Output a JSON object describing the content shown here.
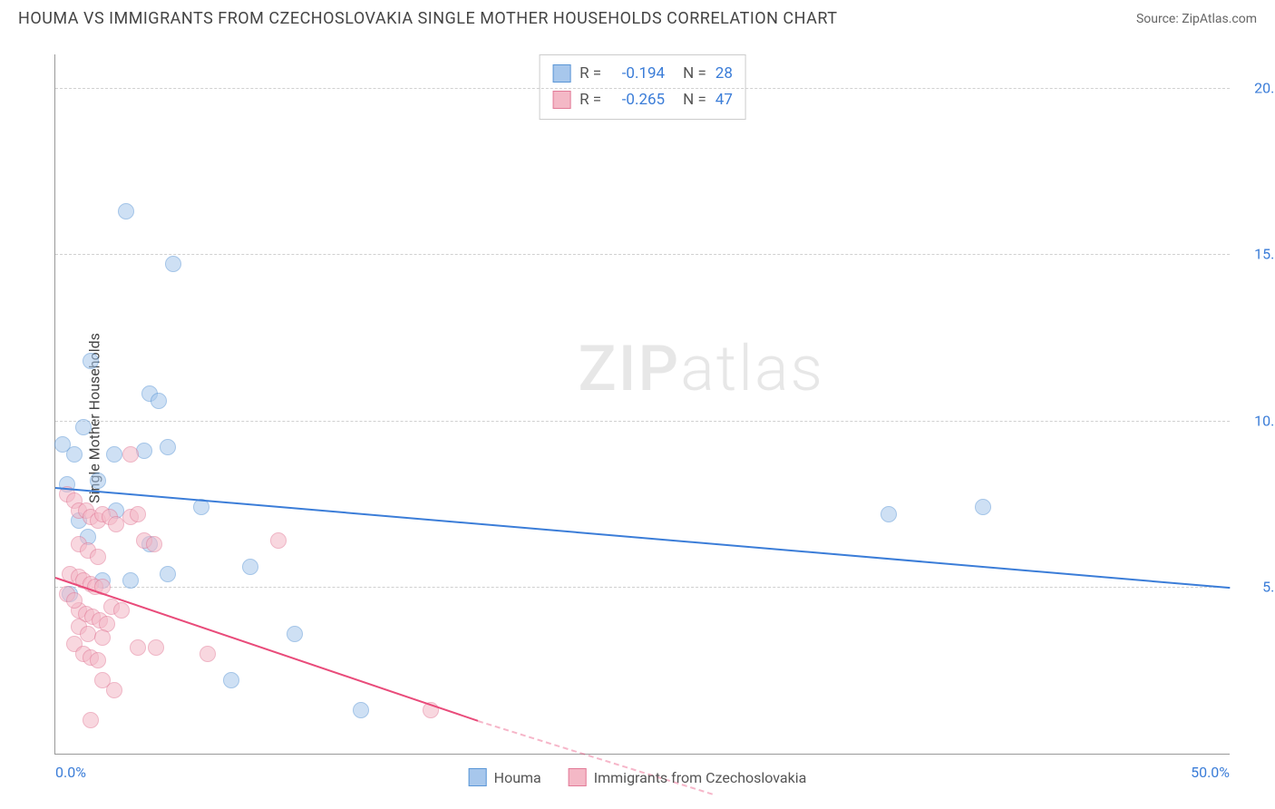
{
  "title": "HOUMA VS IMMIGRANTS FROM CZECHOSLOVAKIA SINGLE MOTHER HOUSEHOLDS CORRELATION CHART",
  "source": "Source: ZipAtlas.com",
  "ylabel": "Single Mother Households",
  "watermark_bold": "ZIP",
  "watermark_light": "atlas",
  "chart": {
    "type": "scatter",
    "background_color": "#ffffff",
    "grid_color": "#d0d0d0",
    "axis_color": "#999999",
    "text_color": "#444444",
    "tick_color": "#3b7dd8",
    "xlim": [
      0,
      50
    ],
    "ylim": [
      0,
      21
    ],
    "xticks": [
      {
        "v": 0,
        "label": "0.0%"
      },
      {
        "v": 50,
        "label": "50.0%"
      }
    ],
    "yticks": [
      {
        "v": 5,
        "label": "5.0%"
      },
      {
        "v": 10,
        "label": "10.0%"
      },
      {
        "v": 15,
        "label": "15.0%"
      },
      {
        "v": 20,
        "label": "20.0%"
      }
    ],
    "marker_radius": 9,
    "marker_opacity": 0.55,
    "series": [
      {
        "name": "Houma",
        "color_fill": "#a7c7ec",
        "color_stroke": "#5a96d6",
        "trend_color": "#3b7dd8",
        "R": "-0.194",
        "N": "28",
        "trend": {
          "x1": 0,
          "y1": 8.0,
          "x2": 50,
          "y2": 5.0
        },
        "points": [
          [
            0.5,
            8.1
          ],
          [
            0.3,
            9.3
          ],
          [
            1.2,
            9.8
          ],
          [
            0.8,
            9.0
          ],
          [
            3.0,
            16.3
          ],
          [
            5.0,
            14.7
          ],
          [
            1.5,
            11.8
          ],
          [
            4.0,
            10.8
          ],
          [
            4.4,
            10.6
          ],
          [
            2.5,
            9.0
          ],
          [
            3.8,
            9.1
          ],
          [
            4.8,
            9.2
          ],
          [
            2.6,
            7.3
          ],
          [
            6.2,
            7.4
          ],
          [
            4.0,
            6.3
          ],
          [
            4.8,
            5.4
          ],
          [
            8.3,
            5.6
          ],
          [
            10.2,
            3.6
          ],
          [
            7.5,
            2.2
          ],
          [
            13.0,
            1.3
          ],
          [
            35.5,
            7.2
          ],
          [
            39.5,
            7.4
          ],
          [
            1.0,
            7.0
          ],
          [
            1.4,
            6.5
          ],
          [
            2.0,
            5.2
          ],
          [
            1.8,
            8.2
          ],
          [
            0.6,
            4.8
          ],
          [
            3.2,
            5.2
          ]
        ]
      },
      {
        "name": "Immigrants from Czechoslovakia",
        "color_fill": "#f4b8c6",
        "color_stroke": "#e27a97",
        "trend_color": "#e94b7a",
        "R": "-0.265",
        "N": "47",
        "trend": {
          "x1": 0,
          "y1": 5.3,
          "x2": 18,
          "y2": 1.0
        },
        "trend_dash": {
          "x1": 18,
          "y1": 1.0,
          "x2": 28,
          "y2": -1.2
        },
        "points": [
          [
            0.5,
            7.8
          ],
          [
            0.8,
            7.6
          ],
          [
            1.0,
            7.3
          ],
          [
            1.3,
            7.3
          ],
          [
            1.5,
            7.1
          ],
          [
            1.8,
            7.0
          ],
          [
            2.0,
            7.2
          ],
          [
            2.3,
            7.1
          ],
          [
            2.6,
            6.9
          ],
          [
            3.2,
            7.1
          ],
          [
            3.5,
            7.2
          ],
          [
            3.8,
            6.4
          ],
          [
            0.6,
            5.4
          ],
          [
            1.0,
            5.3
          ],
          [
            1.2,
            5.2
          ],
          [
            1.5,
            5.1
          ],
          [
            1.7,
            5.0
          ],
          [
            2.0,
            5.0
          ],
          [
            4.2,
            6.3
          ],
          [
            9.5,
            6.4
          ],
          [
            1.0,
            4.3
          ],
          [
            1.3,
            4.2
          ],
          [
            1.6,
            4.1
          ],
          [
            1.9,
            4.0
          ],
          [
            2.2,
            3.9
          ],
          [
            0.8,
            3.3
          ],
          [
            1.2,
            3.0
          ],
          [
            1.5,
            2.9
          ],
          [
            1.8,
            2.8
          ],
          [
            3.5,
            3.2
          ],
          [
            4.3,
            3.2
          ],
          [
            6.5,
            3.0
          ],
          [
            2.0,
            2.2
          ],
          [
            2.5,
            1.9
          ],
          [
            1.5,
            1.0
          ],
          [
            16.0,
            1.3
          ],
          [
            3.2,
            9.0
          ],
          [
            1.0,
            6.3
          ],
          [
            1.4,
            6.1
          ],
          [
            1.8,
            5.9
          ],
          [
            0.5,
            4.8
          ],
          [
            0.8,
            4.6
          ],
          [
            2.4,
            4.4
          ],
          [
            2.8,
            4.3
          ],
          [
            1.0,
            3.8
          ],
          [
            1.4,
            3.6
          ],
          [
            2.0,
            3.5
          ]
        ]
      }
    ],
    "stats_box": {
      "rows": [
        {
          "swatch_fill": "#a7c7ec",
          "swatch_stroke": "#5a96d6",
          "R_label": "R =",
          "R_val": "-0.194",
          "N_label": "N =",
          "N_val": "28"
        },
        {
          "swatch_fill": "#f4b8c6",
          "swatch_stroke": "#e27a97",
          "R_label": "R =",
          "R_val": "-0.265",
          "N_label": "N =",
          "N_val": "47"
        }
      ]
    },
    "bottom_legend": [
      {
        "swatch_fill": "#a7c7ec",
        "swatch_stroke": "#5a96d6",
        "label": "Houma"
      },
      {
        "swatch_fill": "#f4b8c6",
        "swatch_stroke": "#e27a97",
        "label": "Immigrants from Czechoslovakia"
      }
    ]
  }
}
